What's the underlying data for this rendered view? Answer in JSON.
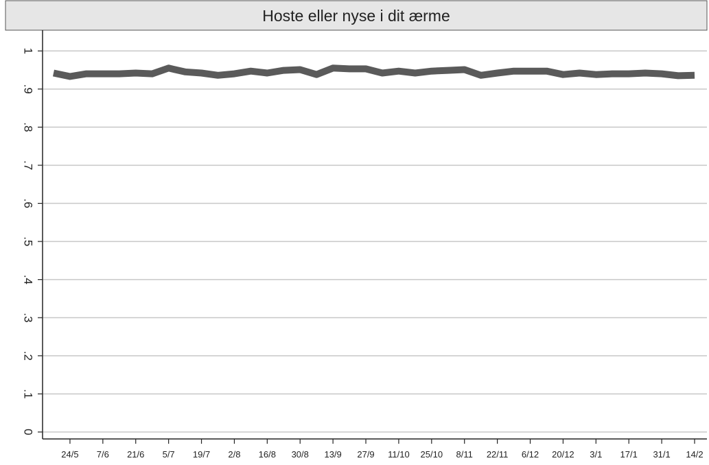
{
  "chart_data": {
    "type": "line",
    "title": "Hoste eller nyse i dit ærme",
    "categories": [
      null,
      "24/5",
      null,
      "7/6",
      null,
      "21/6",
      null,
      "5/7",
      null,
      "19/7",
      null,
      "2/8",
      null,
      "16/8",
      null,
      "30/8",
      null,
      "13/9",
      null,
      "27/9",
      null,
      "11/10",
      null,
      "25/10",
      null,
      "8/11",
      null,
      "22/11",
      null,
      "6/12",
      null,
      "20/12",
      null,
      "3/1",
      null,
      "17/1",
      null,
      "31/1",
      null,
      "14/2"
    ],
    "series": [
      {
        "color": "#5a5a5a",
        "values": [
          0.942,
          0.933,
          0.94,
          0.94,
          0.94,
          0.942,
          0.94,
          0.955,
          0.945,
          0.942,
          0.936,
          0.94,
          0.947,
          0.942,
          0.949,
          0.951,
          0.938,
          0.955,
          0.953,
          0.953,
          0.942,
          0.947,
          0.942,
          0.947,
          0.949,
          0.951,
          0.936,
          0.942,
          0.947,
          0.947,
          0.947,
          0.938,
          0.942,
          0.938,
          0.94,
          0.94,
          0.942,
          0.94,
          0.935,
          0.936
        ]
      }
    ],
    "ylim": [
      -0.0182,
      1.0545
    ],
    "yticks": [
      0,
      {
        "value": 0.1,
        "label": ".1"
      },
      {
        "value": 0.2,
        "label": ".2"
      },
      {
        "value": 0.3,
        "label": ".3"
      },
      {
        "value": 0.4,
        "label": ".4"
      },
      {
        "value": 0.5,
        "label": ".5"
      },
      {
        "value": 0.6,
        "label": ".6"
      },
      {
        "value": 0.7,
        "label": ".7"
      },
      {
        "value": 0.8,
        "label": ".8"
      },
      {
        "value": 0.9,
        "label": ".9"
      },
      1
    ],
    "grid": true
  }
}
